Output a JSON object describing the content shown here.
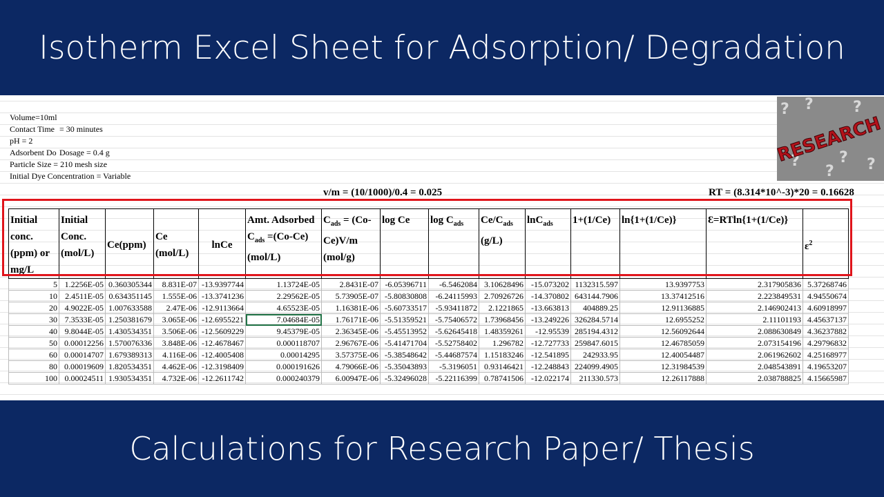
{
  "header": {
    "title": "Isotherm Excel Sheet for Adsorption/ Degradation"
  },
  "footer": {
    "title": "Calculations for Research Paper/ Thesis"
  },
  "image_label": "RESEARCH",
  "notes": [
    [
      "Volume=10ml"
    ],
    [
      "Contact Time",
      "= 30 minutes"
    ],
    [
      "pH = 2"
    ],
    [
      "Adsorbent Do",
      "Dosage = 0.4 g"
    ],
    [
      "Particle Size = 210 mesh size"
    ],
    [
      "Initial Dye Concentration = Variable"
    ]
  ],
  "formulas": [
    "v/m = (10/1000)/0.4 = 0.025",
    "RT = (8.314*10^-3)*20 = 0.16628"
  ],
  "table": {
    "headers": [
      [
        "Initial conc. (ppm) or mg/L"
      ],
      [
        "Initial Conc. (mol/L)"
      ],
      [
        "Ce(ppm)"
      ],
      [
        "Ce (mol/L)"
      ],
      [
        "lnCe"
      ],
      [
        "Amt. Adsorbed C",
        "ads",
        " =(Co-Ce) (mol/L)"
      ],
      [
        "C",
        "ads",
        " = (Co-Ce)V/m (mol/g)"
      ],
      [
        "log Ce"
      ],
      [
        "log C",
        "ads"
      ],
      [
        "Ce/C",
        "ads",
        " (g/L)"
      ],
      [
        "lnC",
        "ads"
      ],
      [
        "1+(1/Ce)"
      ],
      [
        "ln{1+(1/Ce)}"
      ],
      [
        "Ɛ=RTln{1+(1/Ce)}"
      ],
      [
        "ε",
        "2"
      ]
    ],
    "rows": [
      [
        "5",
        "1.2256E-05",
        "0.360305344",
        "8.831E-07",
        "-13.9397744",
        "1.13724E-05",
        "2.8431E-07",
        "-6.05396711",
        "-6.5462084",
        "3.10628496",
        "-15.073202",
        "1132315.597",
        "13.9397753",
        "2.317905836",
        "5.37268746"
      ],
      [
        "10",
        "2.4511E-05",
        "0.634351145",
        "1.555E-06",
        "-13.3741236",
        "2.29562E-05",
        "5.73905E-07",
        "-5.80830808",
        "-6.24115993",
        "2.70926726",
        "-14.370802",
        "643144.7906",
        "13.37412516",
        "2.223849531",
        "4.94550674"
      ],
      [
        "20",
        "4.9022E-05",
        "1.007633588",
        "2.47E-06",
        "-12.9113664",
        "4.65523E-05",
        "1.16381E-06",
        "-5.60733517",
        "-5.93411872",
        "2.1221865",
        "-13.663813",
        "404889.25",
        "12.91136885",
        "2.146902413",
        "4.60918997"
      ],
      [
        "30",
        "7.3533E-05",
        "1.250381679",
        "3.065E-06",
        "-12.6955221",
        "7.04684E-05",
        "1.76171E-06",
        "-5.51359521",
        "-5.75406572",
        "1.73968456",
        "-13.249226",
        "326284.5714",
        "12.6955252",
        "2.11101193",
        "4.45637137"
      ],
      [
        "40",
        "9.8044E-05",
        "1.430534351",
        "3.506E-06",
        "-12.5609229",
        "9.45379E-05",
        "2.36345E-06",
        "-5.45513952",
        "-5.62645418",
        "1.48359261",
        "-12.95539",
        "285194.4312",
        "12.56092644",
        "2.088630849",
        "4.36237882"
      ],
      [
        "50",
        "0.00012256",
        "1.570076336",
        "3.848E-06",
        "-12.4678467",
        "0.000118707",
        "2.96767E-06",
        "-5.41471704",
        "-5.52758402",
        "1.296782",
        "-12.727733",
        "259847.6015",
        "12.46785059",
        "2.073154196",
        "4.29796832"
      ],
      [
        "60",
        "0.00014707",
        "1.679389313",
        "4.116E-06",
        "-12.4005408",
        "0.00014295",
        "3.57375E-06",
        "-5.38548642",
        "-5.44687574",
        "1.15183246",
        "-12.541895",
        "242933.95",
        "12.40054487",
        "2.061962602",
        "4.25168977"
      ],
      [
        "80",
        "0.00019609",
        "1.820534351",
        "4.462E-06",
        "-12.3198409",
        "0.000191626",
        "4.79066E-06",
        "-5.35043893",
        "-5.3196051",
        "0.93146421",
        "-12.248843",
        "224099.4905",
        "12.31984539",
        "2.048543891",
        "4.19653207"
      ],
      [
        "100",
        "0.00024511",
        "1.930534351",
        "4.732E-06",
        "-12.2611742",
        "0.000240379",
        "6.00947E-06",
        "-5.32496028",
        "-5.22116399",
        "0.78741506",
        "-12.022174",
        "211330.573",
        "12.26117888",
        "2.038788825",
        "4.15665987"
      ]
    ]
  }
}
